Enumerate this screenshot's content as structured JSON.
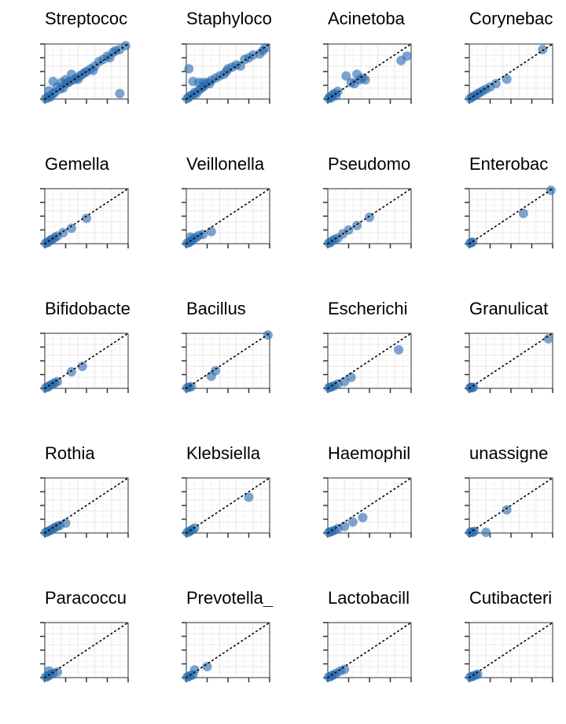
{
  "chart_data": {
    "type": "scatter",
    "layout": "facet-grid 5 rows x 4 columns",
    "title": "",
    "xlabel": "",
    "ylabel": "",
    "xlim": [
      0,
      1
    ],
    "ylim": [
      0,
      1
    ],
    "grid": true,
    "reference_line": "y = x (dotted black)",
    "point_color": "#2b6cb0",
    "panels": [
      {
        "title": "Streptococ",
        "points": [
          [
            0.01,
            0.01
          ],
          [
            0.03,
            0.02
          ],
          [
            0.05,
            0.05
          ],
          [
            0.07,
            0.04
          ],
          [
            0.1,
            0.1
          ],
          [
            0.12,
            0.12
          ],
          [
            0.15,
            0.22
          ],
          [
            0.18,
            0.18
          ],
          [
            0.2,
            0.3
          ],
          [
            0.22,
            0.2
          ],
          [
            0.25,
            0.28
          ],
          [
            0.28,
            0.3
          ],
          [
            0.3,
            0.32
          ],
          [
            0.32,
            0.45
          ],
          [
            0.35,
            0.35
          ],
          [
            0.38,
            0.38
          ],
          [
            0.4,
            0.36
          ],
          [
            0.42,
            0.42
          ],
          [
            0.45,
            0.45
          ],
          [
            0.48,
            0.48
          ],
          [
            0.5,
            0.5
          ],
          [
            0.55,
            0.55
          ],
          [
            0.58,
            0.52
          ],
          [
            0.6,
            0.6
          ],
          [
            0.65,
            0.68
          ],
          [
            0.7,
            0.72
          ],
          [
            0.75,
            0.78
          ],
          [
            0.78,
            0.75
          ],
          [
            0.82,
            0.85
          ],
          [
            0.85,
            0.88
          ],
          [
            0.9,
            0.9
          ],
          [
            0.97,
            0.97
          ],
          [
            0.1,
            0.32
          ],
          [
            0.25,
            0.35
          ],
          [
            0.05,
            0.15
          ],
          [
            0.9,
            0.1
          ]
        ]
      },
      {
        "title": "Staphyloco",
        "points": [
          [
            0.01,
            0.01
          ],
          [
            0.03,
            0.03
          ],
          [
            0.05,
            0.06
          ],
          [
            0.08,
            0.08
          ],
          [
            0.1,
            0.12
          ],
          [
            0.12,
            0.1
          ],
          [
            0.15,
            0.16
          ],
          [
            0.18,
            0.2
          ],
          [
            0.2,
            0.22
          ],
          [
            0.22,
            0.25
          ],
          [
            0.25,
            0.3
          ],
          [
            0.28,
            0.28
          ],
          [
            0.3,
            0.34
          ],
          [
            0.35,
            0.38
          ],
          [
            0.4,
            0.42
          ],
          [
            0.45,
            0.45
          ],
          [
            0.48,
            0.5
          ],
          [
            0.5,
            0.55
          ],
          [
            0.55,
            0.58
          ],
          [
            0.6,
            0.62
          ],
          [
            0.65,
            0.6
          ],
          [
            0.7,
            0.72
          ],
          [
            0.75,
            0.75
          ],
          [
            0.8,
            0.8
          ],
          [
            0.88,
            0.82
          ],
          [
            0.95,
            0.93
          ],
          [
            0.92,
            0.88
          ],
          [
            0.03,
            0.55
          ],
          [
            0.08,
            0.32
          ],
          [
            0.15,
            0.3
          ],
          [
            0.2,
            0.3
          ]
        ]
      },
      {
        "title": "Acinetoba",
        "points": [
          [
            0.01,
            0.01
          ],
          [
            0.02,
            0.03
          ],
          [
            0.04,
            0.02
          ],
          [
            0.06,
            0.08
          ],
          [
            0.08,
            0.1
          ],
          [
            0.1,
            0.06
          ],
          [
            0.12,
            0.14
          ],
          [
            0.28,
            0.3
          ],
          [
            0.32,
            0.28
          ],
          [
            0.38,
            0.35
          ],
          [
            0.42,
            0.38
          ],
          [
            0.45,
            0.35
          ],
          [
            0.35,
            0.45
          ],
          [
            0.22,
            0.42
          ],
          [
            0.88,
            0.7
          ],
          [
            0.95,
            0.78
          ]
        ]
      },
      {
        "title": "Corynebac",
        "points": [
          [
            0.01,
            0.01
          ],
          [
            0.03,
            0.03
          ],
          [
            0.05,
            0.05
          ],
          [
            0.08,
            0.07
          ],
          [
            0.1,
            0.1
          ],
          [
            0.13,
            0.12
          ],
          [
            0.16,
            0.15
          ],
          [
            0.2,
            0.18
          ],
          [
            0.25,
            0.22
          ],
          [
            0.32,
            0.28
          ],
          [
            0.45,
            0.36
          ],
          [
            0.88,
            0.9
          ]
        ]
      },
      {
        "title": "Gemella",
        "points": [
          [
            0.01,
            0.01
          ],
          [
            0.03,
            0.02
          ],
          [
            0.05,
            0.04
          ],
          [
            0.07,
            0.07
          ],
          [
            0.09,
            0.08
          ],
          [
            0.12,
            0.11
          ],
          [
            0.15,
            0.14
          ],
          [
            0.22,
            0.2
          ],
          [
            0.32,
            0.28
          ],
          [
            0.5,
            0.46
          ]
        ]
      },
      {
        "title": "Veillonella",
        "points": [
          [
            0.01,
            0.01
          ],
          [
            0.03,
            0.02
          ],
          [
            0.05,
            0.04
          ],
          [
            0.07,
            0.06
          ],
          [
            0.09,
            0.1
          ],
          [
            0.12,
            0.11
          ],
          [
            0.15,
            0.15
          ],
          [
            0.2,
            0.17
          ],
          [
            0.3,
            0.22
          ],
          [
            0.05,
            0.12
          ]
        ]
      },
      {
        "title": "Pseudomo",
        "points": [
          [
            0.01,
            0.01
          ],
          [
            0.03,
            0.02
          ],
          [
            0.05,
            0.05
          ],
          [
            0.08,
            0.08
          ],
          [
            0.12,
            0.1
          ],
          [
            0.18,
            0.18
          ],
          [
            0.25,
            0.25
          ],
          [
            0.35,
            0.33
          ],
          [
            0.5,
            0.48
          ]
        ]
      },
      {
        "title": "Enterobac",
        "points": [
          [
            0.01,
            0.01
          ],
          [
            0.02,
            0.02
          ],
          [
            0.04,
            0.03
          ],
          [
            0.65,
            0.55
          ],
          [
            0.98,
            0.97
          ]
        ]
      },
      {
        "title": "Bifidobacte",
        "points": [
          [
            0.01,
            0.01
          ],
          [
            0.03,
            0.02
          ],
          [
            0.05,
            0.04
          ],
          [
            0.07,
            0.06
          ],
          [
            0.1,
            0.08
          ],
          [
            0.12,
            0.1
          ],
          [
            0.15,
            0.12
          ],
          [
            0.32,
            0.3
          ],
          [
            0.45,
            0.4
          ]
        ]
      },
      {
        "title": "Bacillus",
        "points": [
          [
            0.01,
            0.01
          ],
          [
            0.03,
            0.02
          ],
          [
            0.06,
            0.03
          ],
          [
            0.3,
            0.22
          ],
          [
            0.35,
            0.32
          ],
          [
            0.98,
            0.97
          ]
        ]
      },
      {
        "title": "Escherichi",
        "points": [
          [
            0.01,
            0.01
          ],
          [
            0.03,
            0.02
          ],
          [
            0.05,
            0.03
          ],
          [
            0.08,
            0.05
          ],
          [
            0.12,
            0.08
          ],
          [
            0.2,
            0.12
          ],
          [
            0.28,
            0.2
          ],
          [
            0.85,
            0.7
          ]
        ]
      },
      {
        "title": "Granulicat",
        "points": [
          [
            0.01,
            0.01
          ],
          [
            0.02,
            0.02
          ],
          [
            0.03,
            0.01
          ],
          [
            0.05,
            0.02
          ],
          [
            0.95,
            0.9
          ]
        ]
      },
      {
        "title": "Rothia",
        "points": [
          [
            0.01,
            0.01
          ],
          [
            0.03,
            0.02
          ],
          [
            0.05,
            0.04
          ],
          [
            0.07,
            0.05
          ],
          [
            0.1,
            0.08
          ],
          [
            0.12,
            0.1
          ],
          [
            0.15,
            0.12
          ],
          [
            0.18,
            0.14
          ],
          [
            0.25,
            0.18
          ]
        ]
      },
      {
        "title": "Klebsiella",
        "points": [
          [
            0.01,
            0.01
          ],
          [
            0.03,
            0.02
          ],
          [
            0.05,
            0.04
          ],
          [
            0.07,
            0.06
          ],
          [
            0.1,
            0.09
          ],
          [
            0.75,
            0.65
          ]
        ]
      },
      {
        "title": "Haemophil",
        "points": [
          [
            0.01,
            0.01
          ],
          [
            0.03,
            0.02
          ],
          [
            0.05,
            0.03
          ],
          [
            0.08,
            0.05
          ],
          [
            0.12,
            0.08
          ],
          [
            0.2,
            0.12
          ],
          [
            0.3,
            0.2
          ],
          [
            0.42,
            0.28
          ]
        ]
      },
      {
        "title": "unassigne",
        "points": [
          [
            0.01,
            0.01
          ],
          [
            0.02,
            0.02
          ],
          [
            0.04,
            0.01
          ],
          [
            0.06,
            0.03
          ],
          [
            0.2,
            0.01
          ],
          [
            0.45,
            0.42
          ]
        ]
      },
      {
        "title": "Paracoccu",
        "points": [
          [
            0.01,
            0.01
          ],
          [
            0.03,
            0.02
          ],
          [
            0.05,
            0.04
          ],
          [
            0.07,
            0.06
          ],
          [
            0.1,
            0.08
          ],
          [
            0.15,
            0.1
          ],
          [
            0.05,
            0.12
          ]
        ]
      },
      {
        "title": "Prevotella_",
        "points": [
          [
            0.01,
            0.01
          ],
          [
            0.03,
            0.02
          ],
          [
            0.05,
            0.04
          ],
          [
            0.08,
            0.05
          ],
          [
            0.1,
            0.14
          ],
          [
            0.25,
            0.2
          ]
        ]
      },
      {
        "title": "Lactobacill",
        "points": [
          [
            0.01,
            0.01
          ],
          [
            0.03,
            0.02
          ],
          [
            0.05,
            0.04
          ],
          [
            0.07,
            0.05
          ],
          [
            0.1,
            0.08
          ],
          [
            0.15,
            0.12
          ],
          [
            0.2,
            0.15
          ]
        ]
      },
      {
        "title": "Cutibacteri",
        "points": [
          [
            0.01,
            0.01
          ],
          [
            0.03,
            0.02
          ],
          [
            0.05,
            0.03
          ],
          [
            0.08,
            0.05
          ],
          [
            0.1,
            0.06
          ]
        ]
      }
    ]
  }
}
